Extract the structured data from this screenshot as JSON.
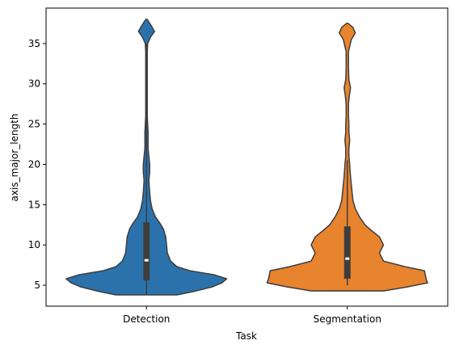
{
  "chart_data": {
    "type": "violin",
    "title": "",
    "xlabel": "Task",
    "ylabel": "axis_major_length",
    "categories": [
      "Detection",
      "Segmentation"
    ],
    "ylim": [
      2.4,
      39.4
    ],
    "yticks": [
      5,
      10,
      15,
      20,
      25,
      30,
      35
    ],
    "grid": false,
    "legend": "none",
    "series": [
      {
        "category": "Detection",
        "color": "#2b72ad",
        "min": 3.8,
        "max": 38.0,
        "q1": 5.6,
        "median": 8.1,
        "q3": 12.8,
        "whisker_low": 3.8,
        "whisker_high": 35.0,
        "density": [
          [
            3.8,
            0.38
          ],
          [
            4.2,
            0.58
          ],
          [
            4.8,
            0.82
          ],
          [
            5.3,
            0.94
          ],
          [
            5.8,
            1.0
          ],
          [
            6.3,
            0.84
          ],
          [
            6.8,
            0.54
          ],
          [
            7.3,
            0.38
          ],
          [
            8.0,
            0.3
          ],
          [
            9.0,
            0.26
          ],
          [
            10.0,
            0.25
          ],
          [
            11.0,
            0.24
          ],
          [
            12.0,
            0.21
          ],
          [
            12.8,
            0.16
          ],
          [
            13.5,
            0.11
          ],
          [
            14.5,
            0.07
          ],
          [
            15.5,
            0.05
          ],
          [
            16.5,
            0.04
          ],
          [
            18.0,
            0.03
          ],
          [
            19.0,
            0.04
          ],
          [
            20.0,
            0.04
          ],
          [
            21.0,
            0.03
          ],
          [
            22.0,
            0.02
          ],
          [
            23.0,
            0.02
          ],
          [
            24.0,
            0.02
          ],
          [
            26.0,
            0.01
          ],
          [
            28.0,
            0.01
          ],
          [
            30.0,
            0.01
          ],
          [
            32.0,
            0.01
          ],
          [
            34.0,
            0.01
          ],
          [
            35.0,
            0.015
          ],
          [
            35.8,
            0.05
          ],
          [
            36.5,
            0.1
          ],
          [
            37.2,
            0.06
          ],
          [
            38.0,
            0.01
          ]
        ]
      },
      {
        "category": "Segmentation",
        "color": "#e8832e",
        "min": 4.3,
        "max": 37.5,
        "q1": 5.8,
        "median": 8.3,
        "q3": 12.3,
        "whisker_low": 5.0,
        "whisker_high": 20.5,
        "density": [
          [
            4.3,
            0.45
          ],
          [
            4.8,
            0.75
          ],
          [
            5.3,
            1.0
          ],
          [
            5.8,
            0.98
          ],
          [
            6.3,
            0.97
          ],
          [
            6.8,
            0.96
          ],
          [
            7.3,
            0.72
          ],
          [
            8.0,
            0.45
          ],
          [
            9.0,
            0.4
          ],
          [
            10.0,
            0.45
          ],
          [
            11.0,
            0.4
          ],
          [
            11.8,
            0.3
          ],
          [
            12.5,
            0.22
          ],
          [
            13.5,
            0.15
          ],
          [
            14.5,
            0.1
          ],
          [
            15.5,
            0.07
          ],
          [
            16.5,
            0.06
          ],
          [
            17.5,
            0.05
          ],
          [
            18.5,
            0.04
          ],
          [
            20.0,
            0.03
          ],
          [
            21.0,
            0.02
          ],
          [
            22.0,
            0.02
          ],
          [
            23.0,
            0.03
          ],
          [
            24.0,
            0.02
          ],
          [
            25.0,
            0.02
          ],
          [
            26.0,
            0.015
          ],
          [
            27.5,
            0.015
          ],
          [
            28.5,
            0.025
          ],
          [
            29.5,
            0.04
          ],
          [
            30.5,
            0.02
          ],
          [
            32.0,
            0.015
          ],
          [
            34.0,
            0.015
          ],
          [
            35.5,
            0.05
          ],
          [
            36.3,
            0.1
          ],
          [
            37.0,
            0.07
          ],
          [
            37.5,
            0.01
          ]
        ]
      }
    ]
  }
}
